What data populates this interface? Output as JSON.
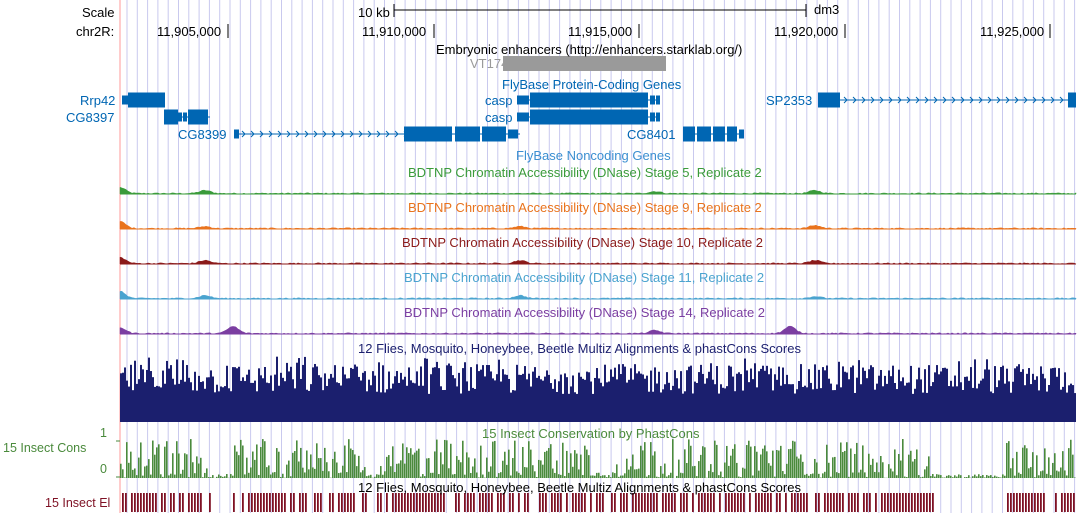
{
  "browser": {
    "assembly": "dm3",
    "scale_label": "Scale",
    "scale_bar_text": "10 kb",
    "chrom_label": "chr2R:",
    "ruler_ticks": [
      {
        "pos": 11905000,
        "label": "11,905,000"
      },
      {
        "pos": 11910000,
        "label": "11,910,000"
      },
      {
        "pos": 11915000,
        "label": "11,915,000"
      },
      {
        "pos": 11920000,
        "label": "11,920,000"
      },
      {
        "pos": 11925000,
        "label": "11,925,000"
      }
    ],
    "colors": {
      "gene_blue": "#0066b3",
      "noncoding_blue": "#3b8fd1",
      "enhancer_gray": "#9a9a9a",
      "grid_blue": "#c9c9ee",
      "stage5": "#3a9b3a",
      "stage9": "#e9731d",
      "stage10": "#8b1a1a",
      "stage11": "#4aa3cf",
      "stage14": "#7b3ea1",
      "multiz": "#1b1f6e",
      "phastcons": "#4a8a3c",
      "elements": "#7e1124",
      "left_margin_line": "#ff9999"
    }
  },
  "tracks": {
    "enhancers": {
      "title": "Embryonic enhancers (http://enhancers.starklab.org/)",
      "feature_label": "VT17470"
    },
    "flybase_coding": {
      "title": "FlyBase Protein-Coding Genes",
      "genes": [
        {
          "name": "Rrp42",
          "side": "left"
        },
        {
          "name": "CG8397",
          "side": "left"
        },
        {
          "name": "CG8399",
          "side": "left"
        },
        {
          "name": "casp",
          "side": "left"
        },
        {
          "name": "casp",
          "side": "left"
        },
        {
          "name": "CG8401",
          "side": "left"
        },
        {
          "name": "SP2353",
          "side": "left"
        }
      ]
    },
    "flybase_noncoding": {
      "title": "FlyBase Noncoding Genes"
    },
    "dnase": [
      {
        "title": "BDTNP Chromatin Accessibility (DNase) Stage 5, Replicate 2",
        "color_key": "stage5"
      },
      {
        "title": "BDTNP Chromatin Accessibility (DNase) Stage 9, Replicate 2",
        "color_key": "stage9"
      },
      {
        "title": "BDTNP Chromatin Accessibility (DNase) Stage 10, Replicate 2",
        "color_key": "stage10"
      },
      {
        "title": "BDTNP Chromatin Accessibility (DNase) Stage 11, Replicate 2",
        "color_key": "stage11"
      },
      {
        "title": "BDTNP Chromatin Accessibility (DNase) Stage 14, Replicate 2",
        "color_key": "stage14"
      }
    ],
    "multiz": {
      "title": "12 Flies, Mosquito, Honeybee, Beetle Multiz Alignments & phastCons Scores"
    },
    "phastcons": {
      "title": "15 Insect Conservation by PhastCons",
      "side_label": "15 Insect Cons",
      "axis_max": "1",
      "axis_min": "0"
    },
    "elements": {
      "title": "12 Flies, Mosquito, Honeybee, Beetle Multiz Alignments & phastCons Scores",
      "side_label": "15 Insect El"
    }
  }
}
